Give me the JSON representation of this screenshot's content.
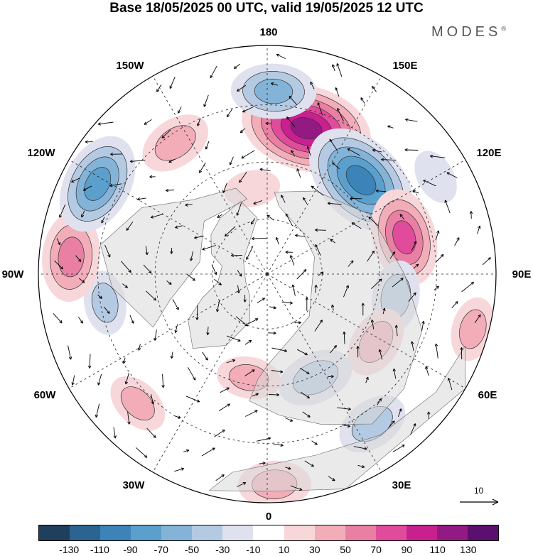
{
  "title": "Base 18/05/2025 00 UTC, valid 19/05/2025 12 UTC",
  "brand": "MODES",
  "brand_mark": "®",
  "longitude_labels": {
    "lon_180": "180",
    "lon_150e": "150E",
    "lon_120e": "120E",
    "lon_90e": "90E",
    "lon_60e": "60E",
    "lon_30e": "30E",
    "lon_0": "0",
    "lon_30w": "30W",
    "lon_60w": "60W",
    "lon_90w": "90W",
    "lon_120w": "120W",
    "lon_150w": "150W"
  },
  "reference_vector": {
    "label": "10"
  },
  "colorbar": {
    "colors": [
      "#1f3f5f",
      "#2b6490",
      "#3c84b8",
      "#5b9fcc",
      "#83b4d8",
      "#b4c9e2",
      "#dfe2ee",
      "#ffffff",
      "#f8d7da",
      "#f2adb9",
      "#ea7fa4",
      "#e04c9b",
      "#c8208f",
      "#941a83",
      "#5b0f6f"
    ],
    "tick_labels": [
      "-130",
      "-110",
      "-90",
      "-70",
      "-50",
      "-30",
      "-10",
      "10",
      "30",
      "50",
      "70",
      "90",
      "110",
      "130"
    ]
  },
  "anomaly_centers": [
    {
      "lon": 165,
      "r": 0.66,
      "value": 110
    },
    {
      "lon": 135,
      "r": 0.58,
      "value": -100
    },
    {
      "lon": 105,
      "r": 0.62,
      "value": 70
    },
    {
      "lon": 80,
      "r": 0.57,
      "value": -40
    },
    {
      "lon": 58,
      "r": 0.56,
      "value": 40
    },
    {
      "lon": 25,
      "r": 0.5,
      "value": -45
    },
    {
      "lon": 35,
      "r": 0.8,
      "value": -40
    },
    {
      "lon": 2,
      "r": 0.92,
      "value": 40
    },
    {
      "lon": -10,
      "r": 0.46,
      "value": 30
    },
    {
      "lon": -45,
      "r": 0.8,
      "value": 30
    },
    {
      "lon": -80,
      "r": 0.72,
      "value": -30
    },
    {
      "lon": -95,
      "r": 0.86,
      "value": 60
    },
    {
      "lon": -118,
      "r": 0.84,
      "value": -75
    },
    {
      "lon": -145,
      "r": 0.7,
      "value": 40
    },
    {
      "lon": 178,
      "r": 0.8,
      "value": -55
    },
    {
      "lon": -170,
      "r": 0.38,
      "value": 20
    },
    {
      "lon": 120,
      "r": 0.85,
      "value": -20
    },
    {
      "lon": 75,
      "r": 0.93,
      "value": 30
    }
  ]
}
